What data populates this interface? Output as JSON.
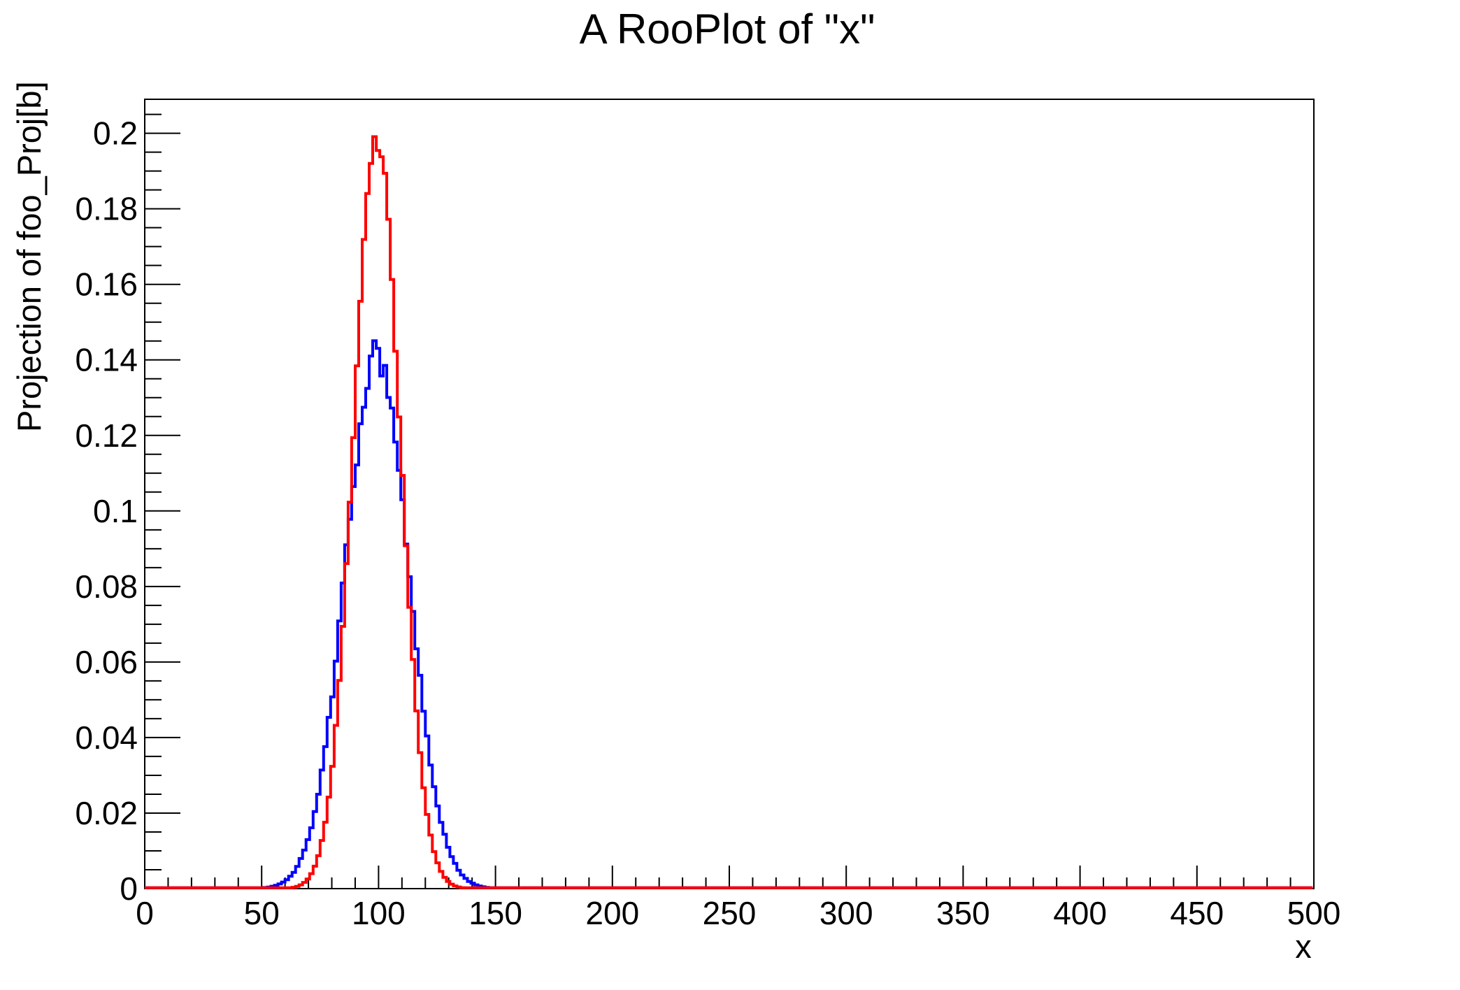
{
  "title": "A RooPlot of \"x\"",
  "chart_data": {
    "type": "line",
    "title": "A RooPlot of \"x\"",
    "xlabel": "x",
    "ylabel": "Projection of foo_Proj[b]",
    "xlim": [
      0,
      500
    ],
    "ylim": [
      0,
      0.209
    ],
    "grid": false,
    "legend": null,
    "background": "#ffffff",
    "frame_color": "#000000",
    "x_major_ticks": [
      0,
      50,
      100,
      150,
      200,
      250,
      300,
      350,
      400,
      450,
      500
    ],
    "x_tick_labels": [
      "0",
      "50",
      "100",
      "150",
      "200",
      "250",
      "300",
      "350",
      "400",
      "450",
      "500"
    ],
    "x_minor_step": 10,
    "y_major_ticks": [
      0,
      0.02,
      0.04,
      0.06,
      0.08,
      0.1,
      0.12,
      0.14,
      0.16,
      0.18,
      0.2
    ],
    "y_tick_labels": [
      "0",
      "0.02",
      "0.04",
      "0.06",
      "0.08",
      "0.1",
      "0.12",
      "0.14",
      "0.16",
      "0.18",
      "0.2"
    ],
    "y_minor_step": 0.005,
    "curve_style": "jagged-staircase",
    "series": [
      {
        "name": "blue-curve",
        "color": "#0000ff",
        "shape": "gaussian",
        "mean": 100,
        "sigma": 13.5,
        "peak": 0.141,
        "line_width": 4,
        "noise": 0.035,
        "seed": 13,
        "samples": {
          "x": [
            0,
            50,
            60,
            70,
            80,
            90,
            100,
            110,
            120,
            130,
            140,
            150,
            160,
            500
          ],
          "y": [
            0,
            0.0002,
            0.0018,
            0.0119,
            0.0471,
            0.1072,
            0.141,
            0.1072,
            0.0471,
            0.0119,
            0.0018,
            0.0002,
            0,
            0
          ]
        }
      },
      {
        "name": "red-curve",
        "color": "#ff0000",
        "shape": "gaussian",
        "mean": 100,
        "sigma": 10,
        "peak": 0.199,
        "line_width": 4,
        "noise": 0.02,
        "seed": 5,
        "samples": {
          "x": [
            0,
            60,
            70,
            80,
            90,
            100,
            110,
            120,
            130,
            140,
            500
          ],
          "y": [
            0,
            0.0001,
            0.0022,
            0.027,
            0.121,
            0.199,
            0.121,
            0.027,
            0.0022,
            0.0001,
            0
          ]
        }
      }
    ]
  }
}
